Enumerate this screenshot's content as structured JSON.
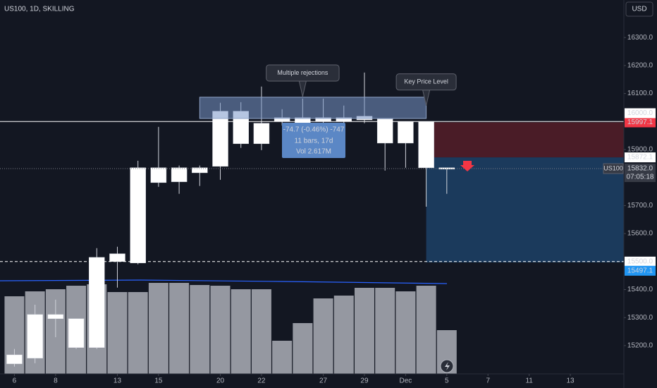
{
  "chart_data": {
    "type": "candlestick",
    "title": "US100, 1D, SKILLING",
    "currency": "USD",
    "xlim": [
      -0.7,
      29.6
    ],
    "ylim": [
      15099,
      16434
    ],
    "open": [
      15167,
      15311,
      15311,
      15296,
      15515,
      15528,
      15835,
      15835,
      15835,
      15835,
      16037,
      16037,
      15994,
      16014,
      16014,
      16014,
      16014,
      16019,
      16009,
      15999,
      15999,
      15835
    ],
    "high": [
      15188,
      15346,
      15364,
      15296,
      15548,
      15553,
      15860,
      15981,
      15843,
      15843,
      16067,
      16069,
      16125,
      16044,
      16082,
      16082,
      16057,
      16175,
      16009,
      15999,
      15999,
      15835
    ],
    "low": [
      15125,
      15137,
      15230,
      15188,
      15188,
      15407,
      15490,
      15767,
      15742,
      15770,
      15792,
      15906,
      15898,
      15986,
      15956,
      15956,
      15981,
      15994,
      15825,
      15835,
      15696,
      15742
    ],
    "close": [
      15135,
      15155,
      15296,
      15193,
      15193,
      15500,
      15495,
      15782,
      15785,
      15817,
      15840,
      15921,
      15921,
      16001,
      15969,
      16001,
      16001,
      16006,
      15923,
      15923,
      15835,
      15830
    ],
    "volume": [
      220,
      234,
      240,
      250,
      254,
      232,
      232,
      258,
      258,
      252,
      250,
      240,
      240,
      94,
      144,
      214,
      222,
      244,
      244,
      234,
      250,
      124
    ],
    "volume_ylim": [
      0,
      1060
    ],
    "yticks": [
      {
        "value": 15200,
        "label": "15200.0"
      },
      {
        "value": 15300,
        "label": "15300.0"
      },
      {
        "value": 15400,
        "label": "15400.0"
      },
      {
        "value": 15600,
        "label": "15600.0"
      },
      {
        "value": 15700,
        "label": "15700.0"
      },
      {
        "value": 15900,
        "label": "15900.0"
      },
      {
        "value": 16100,
        "label": "16100.0"
      },
      {
        "value": 16200,
        "label": "16200.0"
      },
      {
        "value": 16300,
        "label": "16300.0"
      }
    ],
    "xticks": [
      {
        "value": 0,
        "label": "6"
      },
      {
        "value": 2,
        "label": "8"
      },
      {
        "value": 5,
        "label": "13"
      },
      {
        "value": 7,
        "label": "15"
      },
      {
        "value": 10,
        "label": "20"
      },
      {
        "value": 12,
        "label": "22"
      },
      {
        "value": 15,
        "label": "27"
      },
      {
        "value": 17,
        "label": "29"
      },
      {
        "value": 19,
        "label": "Dec"
      },
      {
        "value": 21,
        "label": "5"
      },
      {
        "value": 23,
        "label": "7"
      },
      {
        "value": 25,
        "label": "11"
      },
      {
        "value": 27,
        "label": "13"
      }
    ],
    "hlines": [
      {
        "value": 16000,
        "label": "16000.0",
        "style": "solid"
      },
      {
        "value": 15500,
        "label": "15500.0",
        "style": "dashed"
      }
    ],
    "zone": {
      "x": [
        9,
        20
      ],
      "y": [
        16011,
        16087
      ]
    },
    "callouts": [
      {
        "text": "Multiple rejections",
        "x": 14,
        "y": 16089
      },
      {
        "text": "Key Price Level",
        "x": 20,
        "y": 16057
      }
    ],
    "measure": [
      "-74.7 (-0.46%) -747",
      "11 bars, 17d",
      "Vol 2.617M"
    ],
    "position": {
      "start": 20,
      "entry": 15872.1,
      "stop": 15997.1,
      "target": 15497.1
    },
    "last": {
      "symbol": "US100",
      "price": 15832,
      "price_label": "15832.0",
      "countdown": "07:05:18"
    }
  }
}
